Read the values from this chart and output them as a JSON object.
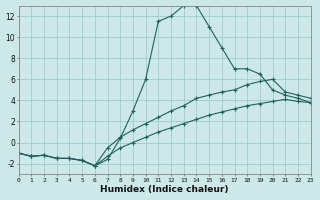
{
  "bg_color": "#cce8e8",
  "line_color": "#206060",
  "grid_color": "#a0cccc",
  "xlabel": "Humidex (Indice chaleur)",
  "xlim": [
    0,
    23
  ],
  "ylim": [
    -3,
    13
  ],
  "xticks": [
    0,
    1,
    2,
    3,
    4,
    5,
    6,
    7,
    8,
    9,
    10,
    11,
    12,
    13,
    14,
    15,
    16,
    17,
    18,
    19,
    20,
    21,
    22,
    23
  ],
  "yticks": [
    -2,
    0,
    2,
    4,
    6,
    8,
    10,
    12
  ],
  "series": [
    {
      "x": [
        0,
        1,
        2,
        3,
        4,
        5,
        6,
        7,
        8,
        9,
        10,
        11,
        12,
        13,
        14,
        15,
        16,
        17,
        18,
        19,
        20,
        21,
        22,
        23
      ],
      "y": [
        -1.0,
        -1.3,
        -1.2,
        -1.5,
        -1.5,
        -1.7,
        -2.2,
        -1.6,
        0.4,
        3.0,
        6.0,
        11.5,
        12.0,
        13.0,
        13.0,
        11.0,
        9.0,
        7.0,
        7.0,
        6.5,
        5.0,
        4.5,
        4.2,
        3.8
      ]
    },
    {
      "x": [
        0,
        1,
        2,
        3,
        4,
        5,
        6,
        7,
        8,
        9,
        10,
        11,
        12,
        13,
        14,
        15,
        16,
        17,
        18,
        19,
        20,
        21,
        22,
        23
      ],
      "y": [
        -1.0,
        -1.3,
        -1.2,
        -1.5,
        -1.5,
        -1.7,
        -2.2,
        -0.5,
        0.5,
        1.2,
        1.8,
        2.4,
        3.0,
        3.5,
        4.2,
        4.5,
        4.8,
        5.0,
        5.5,
        5.8,
        6.0,
        4.8,
        4.5,
        4.2
      ]
    },
    {
      "x": [
        0,
        1,
        2,
        3,
        4,
        5,
        6,
        7,
        8,
        9,
        10,
        11,
        12,
        13,
        14,
        15,
        16,
        17,
        18,
        19,
        20,
        21,
        22,
        23
      ],
      "y": [
        -1.0,
        -1.3,
        -1.2,
        -1.5,
        -1.5,
        -1.7,
        -2.2,
        -1.3,
        -0.5,
        0.0,
        0.5,
        1.0,
        1.4,
        1.8,
        2.2,
        2.6,
        2.9,
        3.2,
        3.5,
        3.7,
        3.9,
        4.1,
        3.9,
        3.8
      ]
    }
  ]
}
